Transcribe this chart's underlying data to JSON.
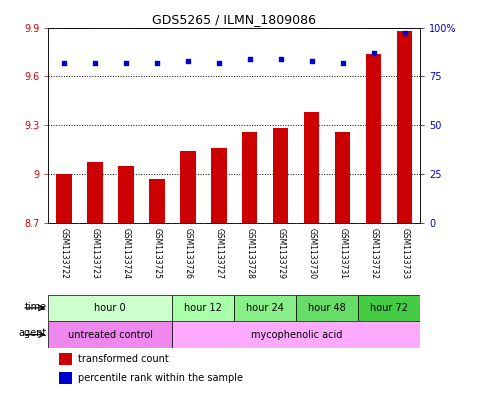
{
  "title": "GDS5265 / ILMN_1809086",
  "samples": [
    "GSM1133722",
    "GSM1133723",
    "GSM1133724",
    "GSM1133725",
    "GSM1133726",
    "GSM1133727",
    "GSM1133728",
    "GSM1133729",
    "GSM1133730",
    "GSM1133731",
    "GSM1133732",
    "GSM1133733"
  ],
  "bar_values": [
    9.0,
    9.07,
    9.05,
    8.97,
    9.14,
    9.16,
    9.26,
    9.28,
    9.38,
    9.26,
    9.74,
    9.88
  ],
  "percentile_values": [
    82,
    82,
    82,
    82,
    83,
    82,
    84,
    84,
    83,
    82,
    87,
    97
  ],
  "ymin": 8.7,
  "ymax": 9.9,
  "ytick_vals": [
    8.7,
    9.0,
    9.3,
    9.6,
    9.9
  ],
  "ytick_labels": [
    "8.7",
    "9",
    "9.3",
    "9.6",
    "9.9"
  ],
  "right_ytick_vals": [
    0,
    25,
    50,
    75,
    100
  ],
  "right_ytick_labels": [
    "0",
    "25",
    "50",
    "75",
    "100%"
  ],
  "bar_color": "#cc0000",
  "percentile_color": "#0000cc",
  "bar_bottom": 8.7,
  "time_groups": [
    {
      "label": "hour 0",
      "start": 0,
      "end": 3,
      "color": "#ccffcc"
    },
    {
      "label": "hour 12",
      "start": 4,
      "end": 5,
      "color": "#aaffaa"
    },
    {
      "label": "hour 24",
      "start": 6,
      "end": 7,
      "color": "#88ee88"
    },
    {
      "label": "hour 48",
      "start": 8,
      "end": 9,
      "color": "#66dd66"
    },
    {
      "label": "hour 72",
      "start": 10,
      "end": 11,
      "color": "#44cc44"
    }
  ],
  "agent_groups": [
    {
      "label": "untreated control",
      "start": 0,
      "end": 3,
      "color": "#ee88ee"
    },
    {
      "label": "mycophenolic acid",
      "start": 4,
      "end": 11,
      "color": "#ffaaff"
    }
  ],
  "sample_bg_color": "#cccccc",
  "legend_bar_label": "transformed count",
  "legend_pct_label": "percentile rank within the sample",
  "time_label": "time",
  "agent_label": "agent",
  "bg_color": "#ffffff",
  "tick_color_left": "#cc0000",
  "tick_color_right": "#0000cc",
  "chart_bg": "#ffffff",
  "border_color": "#000000"
}
